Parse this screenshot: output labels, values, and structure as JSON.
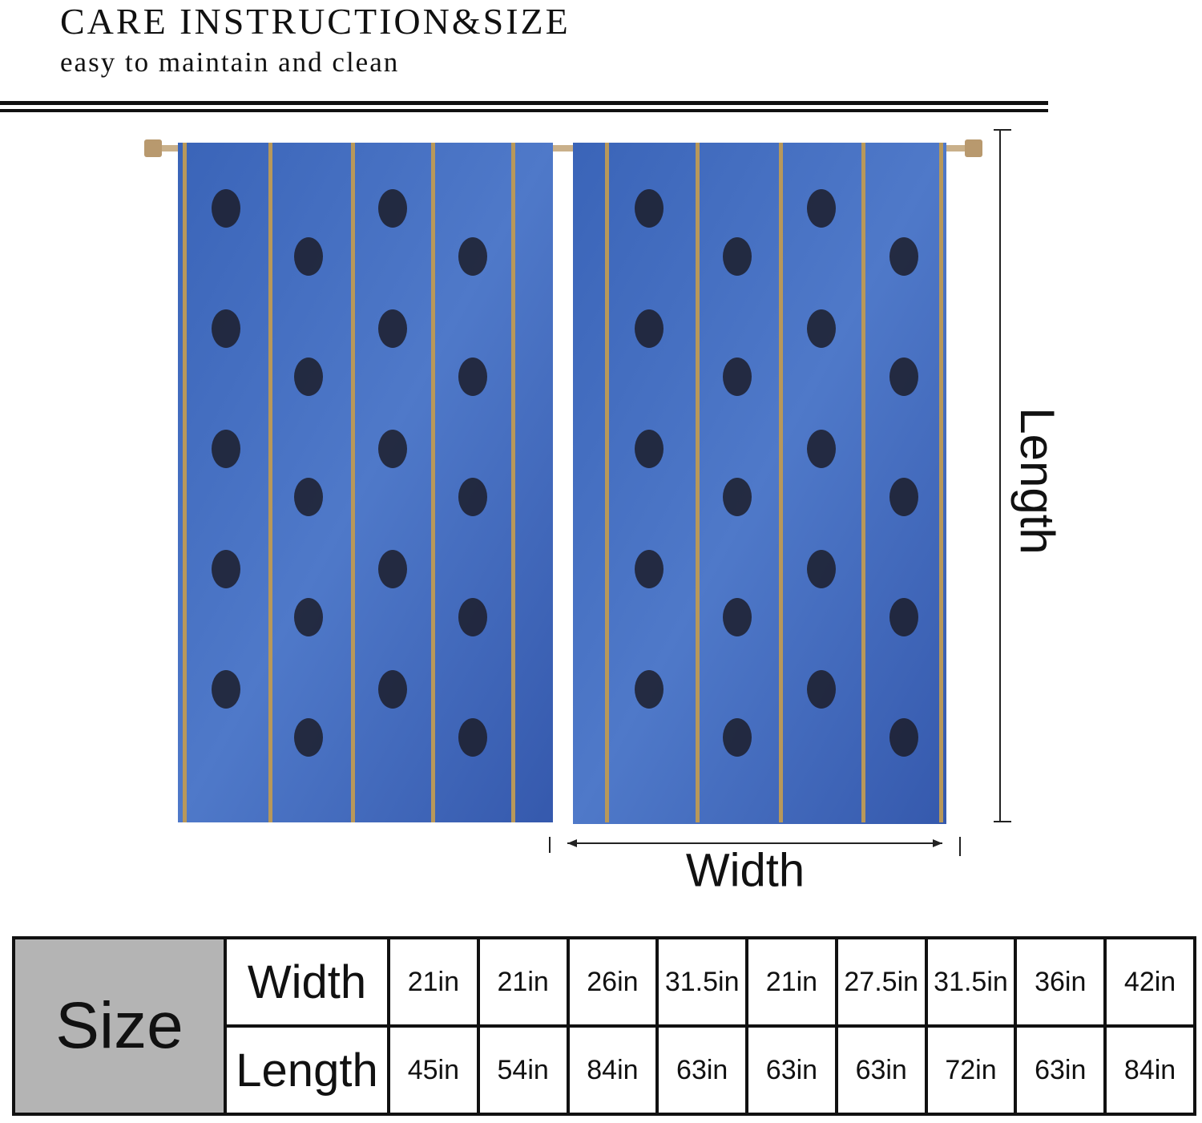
{
  "header": {
    "title": "CARE INSTRUCTION&SIZE",
    "subtitle": "easy to maintain and clean"
  },
  "dimensions": {
    "length": "Length",
    "width": "Width"
  },
  "table": {
    "label": "Size",
    "rows": [
      [
        "Width",
        "21in",
        "21in",
        "26in",
        "31.5in",
        "21in",
        "27.5in",
        "31.5in",
        "36in",
        "42in"
      ],
      [
        "Length",
        "45in",
        "54in",
        "84in",
        "63in",
        "63in",
        "63in",
        "72in",
        "63in",
        "84in"
      ]
    ]
  }
}
